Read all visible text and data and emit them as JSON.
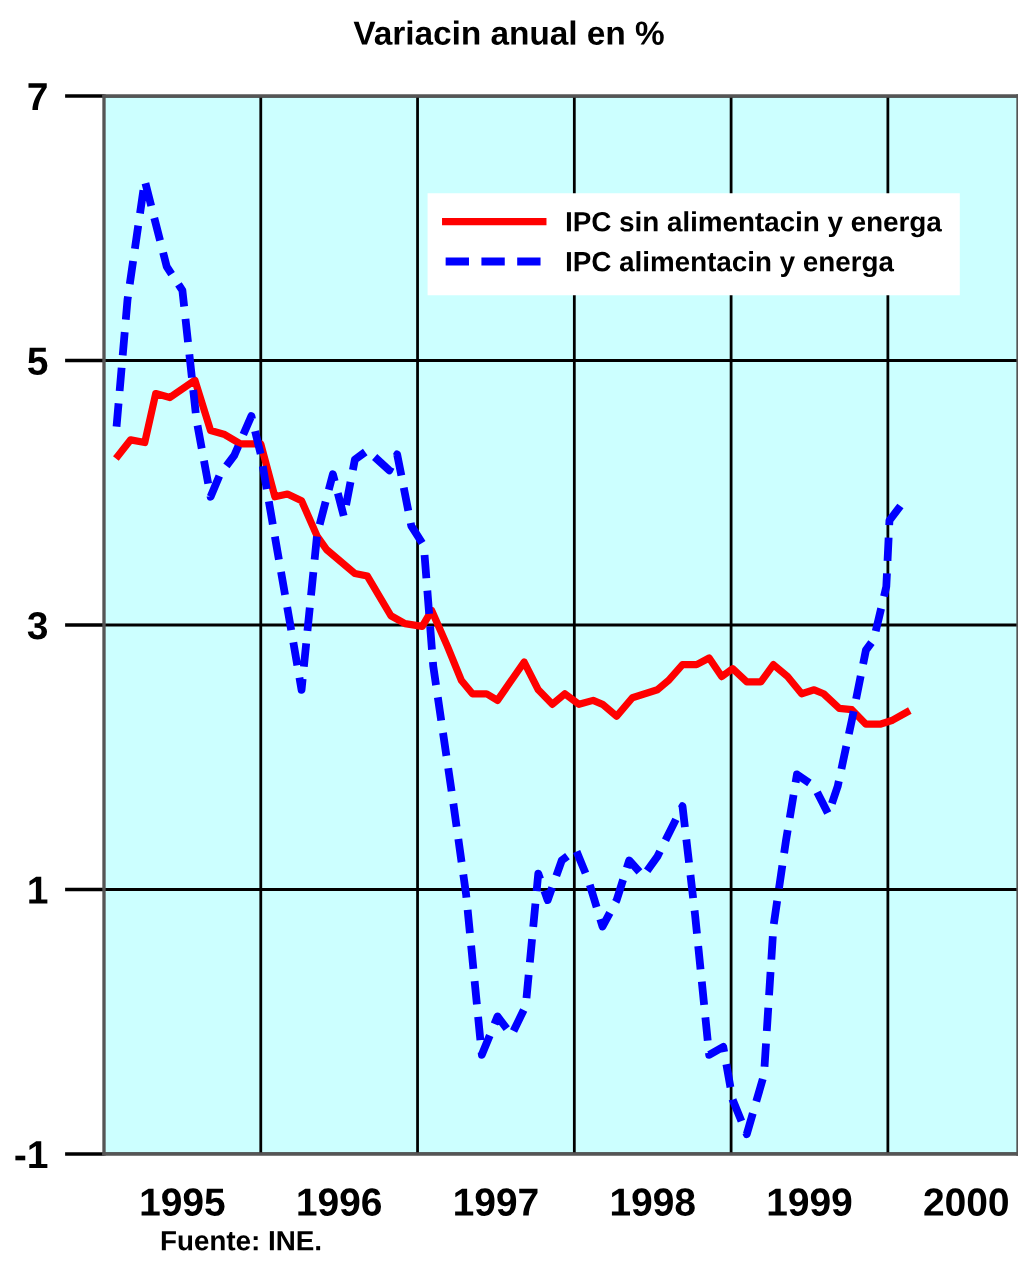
{
  "chart_data": {
    "type": "line",
    "title": "Variacin anual en %",
    "xlim": [
      1995,
      2000.83
    ],
    "ylim": [
      -1,
      7
    ],
    "yticks": [
      -1,
      1,
      3,
      5,
      7
    ],
    "xticks": [
      {
        "value": 1995.5,
        "label": "1995"
      },
      {
        "value": 1996.5,
        "label": "1996"
      },
      {
        "value": 1997.5,
        "label": "1997"
      },
      {
        "value": 1998.5,
        "label": "1998"
      },
      {
        "value": 1999.5,
        "label": "1999"
      },
      {
        "value": 2000.5,
        "label": "2000"
      }
    ],
    "grid": "y",
    "legend": "top right",
    "marker": "none",
    "ref_lines": [
      {
        "axis": "x",
        "value": 1996,
        "color": "#000000"
      },
      {
        "axis": "x",
        "value": 1997,
        "color": "#000000"
      },
      {
        "axis": "x",
        "value": 1998,
        "color": "#000000"
      },
      {
        "axis": "x",
        "value": 1999,
        "color": "#000000"
      },
      {
        "axis": "x",
        "value": 2000,
        "color": "#000000"
      }
    ],
    "annotations": [
      "Fuente: INE."
    ],
    "series": [
      {
        "name": "IPC sin alimentacin y energa",
        "color": "#ff0000",
        "line_style": "solid",
        "x": [
          1995.09,
          1995.17,
          1995.26,
          1995.33,
          1995.42,
          1995.58,
          1995.68,
          1995.77,
          1995.87,
          1996.0,
          1996.09,
          1996.17,
          1996.26,
          1996.36,
          1996.42,
          1996.6,
          1996.68,
          1996.83,
          1996.92,
          1997.03,
          1997.09,
          1997.19,
          1997.28,
          1997.35,
          1997.44,
          1997.51,
          1997.68,
          1997.77,
          1997.86,
          1997.94,
          1998.03,
          1998.12,
          1998.18,
          1998.27,
          1998.37,
          1998.53,
          1998.6,
          1998.69,
          1998.78,
          1998.86,
          1998.94,
          1999.01,
          1999.1,
          1999.19,
          1999.27,
          1999.36,
          1999.45,
          1999.53,
          1999.59,
          1999.69,
          1999.77,
          1999.86,
          1999.95,
          2000.03,
          2000.12
        ],
        "values": [
          4.28,
          4.4,
          4.38,
          4.75,
          4.72,
          4.85,
          4.47,
          4.44,
          4.37,
          4.37,
          3.97,
          3.99,
          3.94,
          3.67,
          3.57,
          3.39,
          3.37,
          3.07,
          3.01,
          2.99,
          3.11,
          2.84,
          2.58,
          2.48,
          2.48,
          2.43,
          2.72,
          2.51,
          2.4,
          2.48,
          2.4,
          2.43,
          2.4,
          2.31,
          2.45,
          2.51,
          2.58,
          2.7,
          2.7,
          2.75,
          2.61,
          2.67,
          2.57,
          2.57,
          2.7,
          2.61,
          2.48,
          2.51,
          2.48,
          2.37,
          2.36,
          2.25,
          2.25,
          2.28,
          2.34
        ]
      },
      {
        "name": "IPC alimentacin y energa",
        "color": "#0000ff",
        "line_style": "dashed",
        "x": [
          1995.08,
          1995.15,
          1995.26,
          1995.4,
          1995.5,
          1995.59,
          1995.68,
          1995.74,
          1995.83,
          1995.94,
          1996.0,
          1996.1,
          1996.19,
          1996.26,
          1996.36,
          1996.46,
          1996.53,
          1996.6,
          1996.68,
          1996.82,
          1996.87,
          1996.96,
          1997.04,
          1997.1,
          1997.22,
          1997.31,
          1997.41,
          1997.51,
          1997.6,
          1997.69,
          1997.77,
          1997.83,
          1997.92,
          1998.01,
          1998.09,
          1998.18,
          1998.27,
          1998.35,
          1998.44,
          1998.53,
          1998.69,
          1998.77,
          1998.86,
          1998.95,
          1999.01,
          1999.1,
          1999.21,
          1999.27,
          1999.35,
          1999.42,
          1999.53,
          1999.62,
          1999.68,
          1999.77,
          1999.86,
          1999.91,
          1999.99,
          2000.01,
          2000.08
        ],
        "values": [
          4.5,
          5.46,
          6.36,
          5.71,
          5.53,
          4.55,
          3.97,
          4.14,
          4.28,
          4.58,
          4.29,
          3.6,
          2.99,
          2.51,
          3.69,
          4.14,
          3.82,
          4.25,
          4.32,
          4.17,
          4.29,
          3.75,
          3.6,
          2.69,
          1.72,
          0.96,
          -0.25,
          0.04,
          -0.1,
          0.12,
          1.12,
          0.92,
          1.22,
          1.3,
          1.07,
          0.72,
          0.92,
          1.22,
          1.1,
          1.25,
          1.63,
          0.81,
          -0.25,
          -0.19,
          -0.59,
          -0.85,
          -0.4,
          0.72,
          1.37,
          1.87,
          1.78,
          1.57,
          1.78,
          2.28,
          2.81,
          2.89,
          3.29,
          3.79,
          3.9
        ]
      }
    ]
  }
}
